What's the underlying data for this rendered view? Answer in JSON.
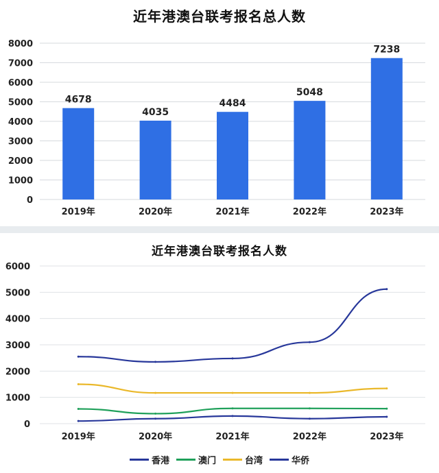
{
  "chart_data": [
    {
      "type": "bar",
      "title": "近年港澳台联考报名总人数",
      "categories": [
        "2019年",
        "2020年",
        "2021年",
        "2022年",
        "2023年"
      ],
      "values": [
        4678,
        4035,
        4484,
        5048,
        7238
      ],
      "value_labels": [
        "4678",
        "4035",
        "4484",
        "5048",
        "7238"
      ],
      "ylim": [
        0,
        8000
      ],
      "yticks": [
        "0",
        "1000",
        "2000",
        "3000",
        "4000",
        "5000",
        "6000",
        "7000",
        "8000"
      ],
      "ytick_values": [
        0,
        1000,
        2000,
        3000,
        4000,
        5000,
        6000,
        7000,
        8000
      ],
      "grid": true,
      "color": "#2f6fe4"
    },
    {
      "type": "line",
      "title": "近年港澳台联考报名人数",
      "categories": [
        "2019年",
        "2020年",
        "2021年",
        "2022年",
        "2023年"
      ],
      "series": [
        {
          "name": "香港",
          "values": [
            2550,
            2350,
            2480,
            3100,
            5120
          ],
          "color": "#27379a"
        },
        {
          "name": "澳门",
          "values": [
            560,
            380,
            580,
            580,
            570
          ],
          "color": "#1fa05a"
        },
        {
          "name": "台湾",
          "values": [
            1500,
            1170,
            1170,
            1170,
            1340
          ],
          "color": "#eab82a"
        },
        {
          "name": "华侨",
          "values": [
            100,
            190,
            290,
            190,
            260
          ],
          "color": "#27379a"
        }
      ],
      "ylim": [
        0,
        6000
      ],
      "yticks": [
        "0",
        "1000",
        "2000",
        "3000",
        "4000",
        "5000",
        "6000"
      ],
      "ytick_values": [
        0,
        1000,
        2000,
        3000,
        4000,
        5000,
        6000
      ],
      "grid": true,
      "legend_position": "bottom"
    }
  ]
}
